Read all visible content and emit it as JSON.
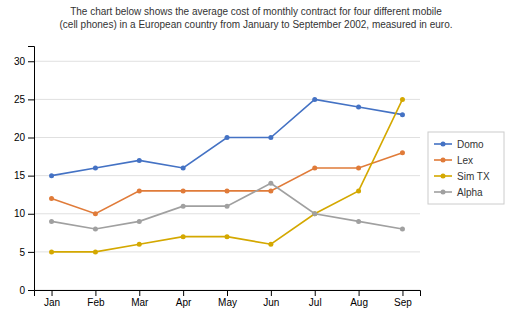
{
  "chart_data": {
    "type": "line",
    "title": "The chart below shows the average cost of monthly contract for four different mobile\n(cell phones) in a European country from January to September 2002, measured in euro.",
    "categories": [
      "Jan",
      "Feb",
      "Mar",
      "Apr",
      "May",
      "Jun",
      "Jul",
      "Aug",
      "Sep"
    ],
    "series": [
      {
        "name": "Domo",
        "values": [
          15,
          16,
          17,
          16,
          20,
          20,
          25,
          24,
          23
        ],
        "color": "#4472C4",
        "marker": "circle"
      },
      {
        "name": "Lex",
        "values": [
          12,
          10,
          13,
          13,
          13,
          13,
          16,
          16,
          18
        ],
        "color": "#E07B39",
        "marker": "circle"
      },
      {
        "name": "Sim TX",
        "values": [
          5,
          5,
          6,
          7,
          7,
          6,
          10,
          13,
          25
        ],
        "color": "#D4A800",
        "marker": "circle"
      },
      {
        "name": "Alpha",
        "values": [
          9,
          8,
          9,
          11,
          11,
          14,
          10,
          9,
          8
        ],
        "color": "#A0A0A0",
        "marker": "circle"
      }
    ],
    "ylim": [
      0,
      32
    ],
    "yticks": [
      0,
      5,
      10,
      15,
      20,
      25,
      30
    ],
    "grid": true,
    "legend": "right"
  }
}
